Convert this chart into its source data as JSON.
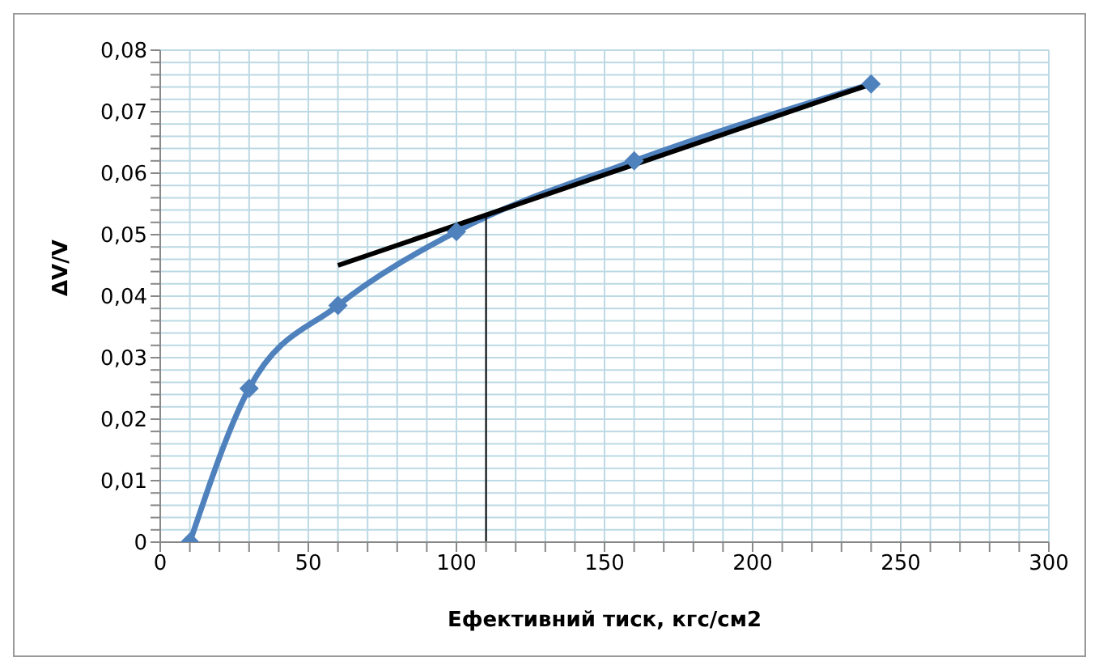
{
  "chart_data": {
    "type": "line",
    "xlabel": "Ефективний тиск, кгс/см2",
    "ylabel": "ΔV/V",
    "grid": true,
    "xlim": [
      0,
      300
    ],
    "ylim": [
      0,
      0.08
    ],
    "xticks": [
      0,
      {
        "value": 10,
        "label": null
      },
      {
        "value": 20,
        "label": null
      },
      {
        "value": 30,
        "label": null
      },
      {
        "value": 40,
        "label": null
      },
      50,
      {
        "value": 60,
        "label": null
      },
      {
        "value": 70,
        "label": null
      },
      {
        "value": 80,
        "label": null
      },
      {
        "value": 90,
        "label": null
      },
      100,
      {
        "value": 110,
        "label": null
      },
      {
        "value": 120,
        "label": null
      },
      {
        "value": 130,
        "label": null
      },
      {
        "value": 140,
        "label": null
      },
      150,
      {
        "value": 160,
        "label": null
      },
      {
        "value": 170,
        "label": null
      },
      {
        "value": 180,
        "label": null
      },
      {
        "value": 190,
        "label": null
      },
      200,
      {
        "value": 210,
        "label": null
      },
      {
        "value": 220,
        "label": null
      },
      {
        "value": 230,
        "label": null
      },
      {
        "value": 240,
        "label": null
      },
      250,
      {
        "value": 260,
        "label": null
      },
      {
        "value": 270,
        "label": null
      },
      {
        "value": 280,
        "label": null
      },
      {
        "value": 290,
        "label": null
      },
      300
    ],
    "yticks": [
      0,
      {
        "value": 0.002,
        "label": null
      },
      {
        "value": 0.004,
        "label": null
      },
      {
        "value": 0.006,
        "label": null
      },
      {
        "value": 0.008,
        "label": null
      },
      {
        "value": 0.01,
        "label": "0,01"
      },
      {
        "value": 0.012,
        "label": null
      },
      {
        "value": 0.014,
        "label": null
      },
      {
        "value": 0.016,
        "label": null
      },
      {
        "value": 0.018,
        "label": null
      },
      {
        "value": 0.02,
        "label": "0,02"
      },
      {
        "value": 0.022,
        "label": null
      },
      {
        "value": 0.024,
        "label": null
      },
      {
        "value": 0.026,
        "label": null
      },
      {
        "value": 0.028,
        "label": null
      },
      {
        "value": 0.03,
        "label": "0,03"
      },
      {
        "value": 0.032,
        "label": null
      },
      {
        "value": 0.034,
        "label": null
      },
      {
        "value": 0.036,
        "label": null
      },
      {
        "value": 0.038,
        "label": null
      },
      {
        "value": 0.04,
        "label": "0,04"
      },
      {
        "value": 0.042,
        "label": null
      },
      {
        "value": 0.044,
        "label": null
      },
      {
        "value": 0.046,
        "label": null
      },
      {
        "value": 0.048,
        "label": null
      },
      {
        "value": 0.05,
        "label": "0,05"
      },
      {
        "value": 0.052,
        "label": null
      },
      {
        "value": 0.054,
        "label": null
      },
      {
        "value": 0.056,
        "label": null
      },
      {
        "value": 0.058,
        "label": null
      },
      {
        "value": 0.06,
        "label": "0,06"
      },
      {
        "value": 0.062,
        "label": null
      },
      {
        "value": 0.064,
        "label": null
      },
      {
        "value": 0.066,
        "label": null
      },
      {
        "value": 0.068,
        "label": null
      },
      {
        "value": 0.07,
        "label": "0,07"
      },
      {
        "value": 0.072,
        "label": null
      },
      {
        "value": 0.074,
        "label": null
      },
      {
        "value": 0.076,
        "label": null
      },
      {
        "value": 0.078,
        "label": null
      },
      {
        "value": 0.08,
        "label": "0,08"
      }
    ],
    "series": [
      {
        "color": "#4f81bd",
        "marker": "diamond",
        "x": [
          10,
          30,
          60,
          100,
          160,
          240
        ],
        "values": [
          0,
          0.025,
          0.0385,
          0.0505,
          0.062,
          0.0745
        ]
      },
      {
        "color": "#000000",
        "marker": "none",
        "x": [
          60,
          240
        ],
        "values": [
          0.045,
          0.0745
        ]
      },
      {
        "color": "#000000",
        "marker": "none",
        "x": [
          110,
          110
        ],
        "values": [
          0,
          0.0532
        ]
      }
    ]
  }
}
